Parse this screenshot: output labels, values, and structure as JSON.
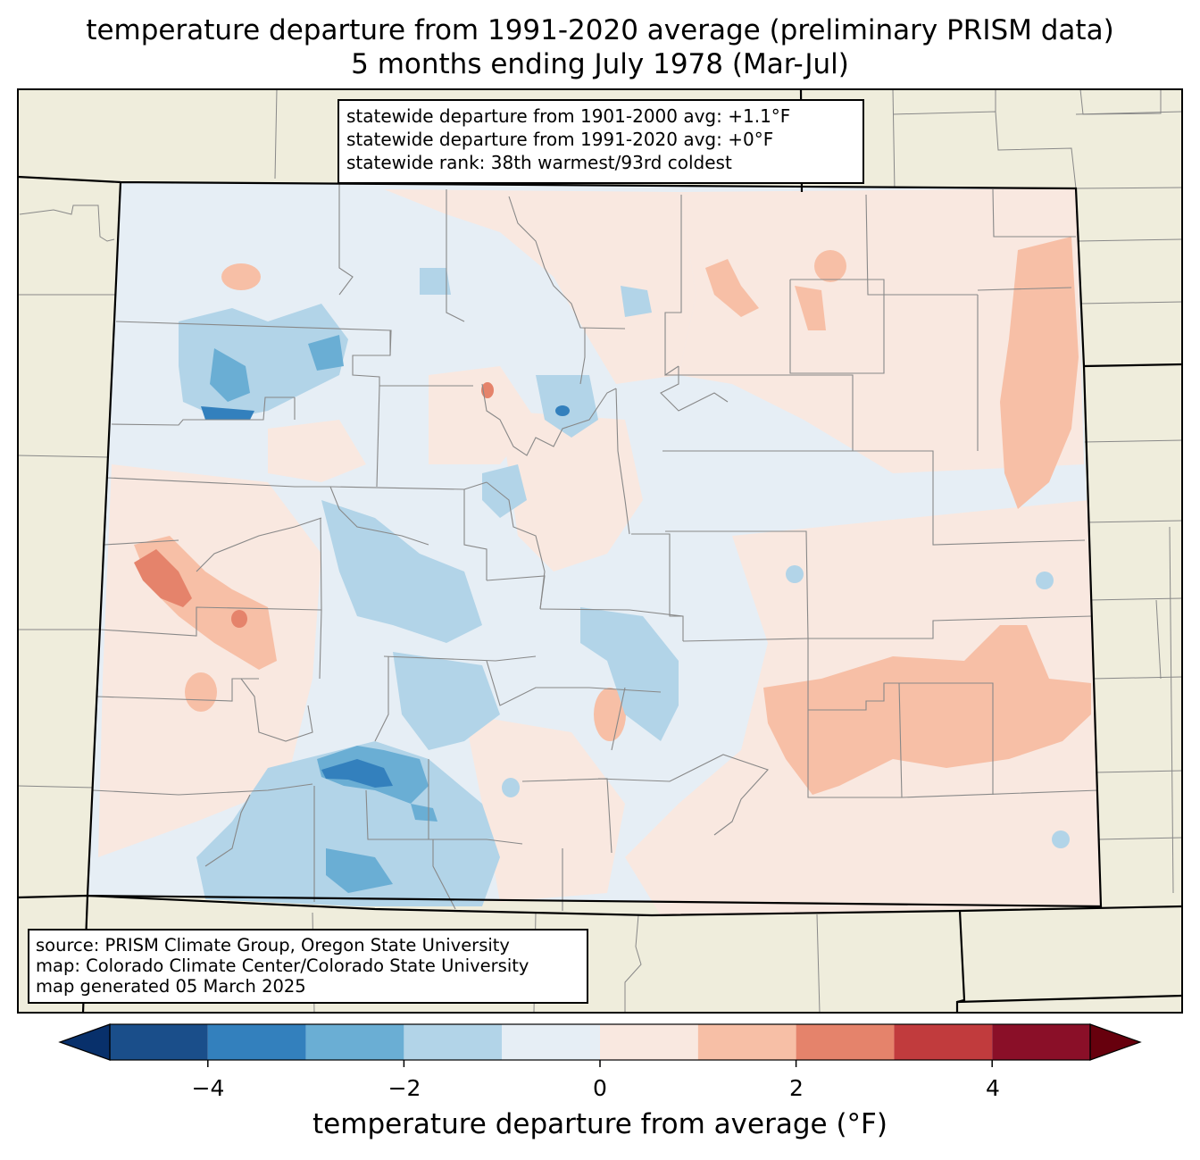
{
  "title": {
    "line1": "temperature departure from 1991-2020 average (preliminary PRISM data)",
    "line2": "5 months ending July 1978 (Mar-Jul)"
  },
  "stats": {
    "line1": "statewide departure from 1901-2000 avg: +1.1°F",
    "line2": "statewide departure from 1991-2020 avg: +0°F",
    "line3": "statewide rank: 38th warmest/93rd coldest"
  },
  "source": {
    "line1": "source: PRISM Climate Group, Oregon State University",
    "line2": "map: Colorado Climate Center/Colorado State University",
    "line3": "map generated 05 March 2025"
  },
  "colorbar": {
    "label": "temperature departure from average (°F)",
    "ticks": [
      "−4",
      "−2",
      "0",
      "2",
      "4"
    ],
    "tick_values": [
      -4,
      -2,
      0,
      2,
      4
    ],
    "bins": [
      {
        "from": -5,
        "to": -4,
        "color": "#1a4e8a"
      },
      {
        "from": -4,
        "to": -3,
        "color": "#3380bd"
      },
      {
        "from": -3,
        "to": -2,
        "color": "#6aaed4"
      },
      {
        "from": -2,
        "to": -1,
        "color": "#b2d4e8"
      },
      {
        "from": -1,
        "to": 0,
        "color": "#e6eef5"
      },
      {
        "from": 0,
        "to": 1,
        "color": "#f9e8e0"
      },
      {
        "from": 1,
        "to": 2,
        "color": "#f7bfa6"
      },
      {
        "from": 2,
        "to": 3,
        "color": "#e5836b"
      },
      {
        "from": 3,
        "to": 4,
        "color": "#c13b3d"
      },
      {
        "from": 4,
        "to": 5,
        "color": "#8a0f28"
      }
    ],
    "under_color": "#08306b",
    "over_color": "#67000d"
  },
  "map_colors": {
    "land": "#efeddc",
    "frame": "#000000",
    "county_lines": "#888888"
  }
}
